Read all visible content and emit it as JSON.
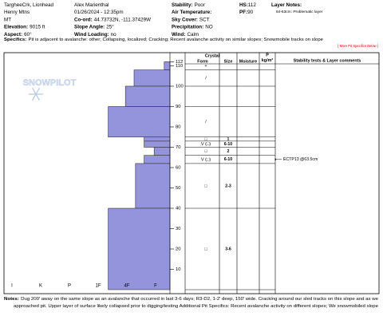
{
  "header": {
    "columns": [
      [
        {
          "value": "TargheeCrk, Lionhead"
        },
        {
          "value": "Henry Mtns"
        },
        {
          "value": "MT"
        },
        {
          "label": "Elevation:",
          "value": "9015 ft"
        },
        {
          "label": "Aspect:",
          "value": "60°"
        }
      ],
      [
        {
          "value": "Alex Marienthal"
        },
        {
          "value": "01/26/2024 - 12:35pm"
        },
        {
          "label": "Co-ord:",
          "value": "44.73732N, -111.37429W"
        },
        {
          "label": "Slope Angle:",
          "value": "25°"
        },
        {
          "label": "Wind Loading:",
          "value": "no"
        }
      ],
      [
        {
          "label": "Stability:",
          "value": "Poor"
        },
        {
          "label": "Air Temperature:"
        },
        {
          "label": "Sky Cover:",
          "value": "SCT"
        },
        {
          "label": "Precipitation:",
          "value": "NO"
        },
        {
          "label": "Wind:",
          "value": "Calm"
        }
      ],
      [
        {
          "label": "HS:",
          "value": "112"
        },
        {
          "label": "PF:",
          "value": "90"
        }
      ],
      [
        {
          "label": "Layer Notes:"
        },
        {
          "value": "64-63cm: Problematic layer"
        }
      ]
    ],
    "specifics": {
      "label": "Specifics:",
      "value": "Pit is adjacent to avalanche: other; Collapsing, localized; Cracking; Recent avalanche activity on similar slopes; Snowmobile tracks on slope"
    },
    "more_link": "[ More Pit Specifics Below ]"
  },
  "logo": "SNOWPILOT",
  "profile": {
    "hardness_labels": [
      "I",
      "K",
      "P",
      "1F",
      "4F",
      "F"
    ],
    "depth_lim": [
      0,
      112
    ],
    "depth_ticks": [
      112,
      110,
      100,
      90,
      80,
      70,
      60,
      50,
      40,
      30,
      20,
      10
    ],
    "table_headers": {
      "crystal": "Crystal",
      "form": "Form",
      "size": "Size",
      "moisture": "Moisture",
      "density": "P",
      "density_unit": "kg/m³",
      "comments": "Stability tests & Layer comments"
    },
    "layers": [
      {
        "top": 112,
        "bottom": 108,
        "hardness": 0.2,
        "form": "+"
      },
      {
        "top": 108,
        "bottom": 100,
        "hardness": 1.25,
        "form": "/"
      },
      {
        "top": 100,
        "bottom": 90,
        "hardness": 1.55
      },
      {
        "top": 90,
        "bottom": 75,
        "hardness": 2.15,
        "form": "/"
      },
      {
        "top": 75,
        "bottom": 73,
        "hardness": 0.9,
        "form": "□",
        "size": "1"
      },
      {
        "top": 73,
        "bottom": 70,
        "hardness": 0.9,
        "form": "V (□)",
        "size": "6-10"
      },
      {
        "top": 70,
        "bottom": 66,
        "hardness": 0.55,
        "form": "□",
        "size": "2"
      },
      {
        "top": 66,
        "bottom": 62,
        "hardness": 0.9,
        "form": "V (□)",
        "size": "6-10",
        "comment": "ECTP13 @63.5cm"
      },
      {
        "top": 62,
        "bottom": 40,
        "hardness": 1.2,
        "form": "□",
        "size": "2-3"
      },
      {
        "top": 40,
        "bottom": 0,
        "hardness": 2.15,
        "form": "□",
        "size": "3-6"
      }
    ]
  },
  "notes": {
    "label": "Notes:",
    "lines": [
      "Dug 200' away on the same slope as an avalanche that occurred in last 3-6 days; R3-D2, 1-2' deep, 150' wide. Cracking around our sled tracks on this slope and as we",
      "approached pit. Upper layer of surface likely collapsed prior to digging/testing Additional Pit Specifics: Recent avalanche activity on different slopes; We snowmobiled slope"
    ]
  }
}
